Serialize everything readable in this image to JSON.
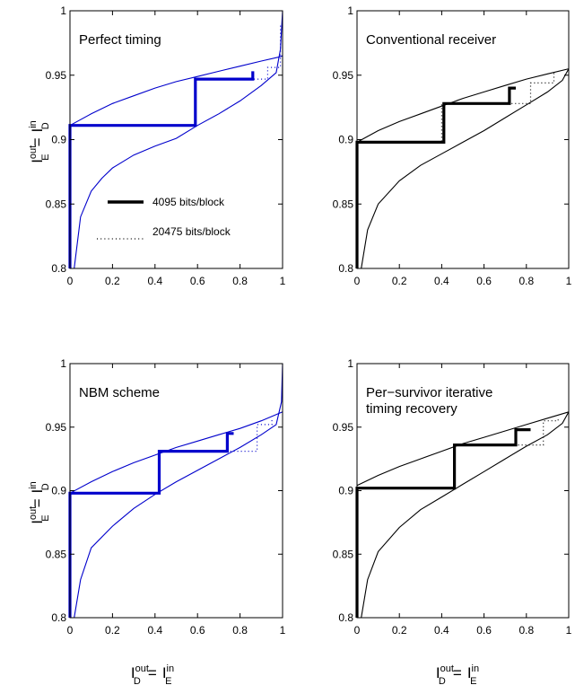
{
  "axis_labels": {
    "y": {
      "main": "I",
      "sup": "out",
      "sub": "E",
      "eq": "=",
      "main2": "I",
      "sup2": "in",
      "sub2": "D"
    },
    "x": {
      "main": "I",
      "sup": "out",
      "sub": "D",
      "eq": "=",
      "main2": "I",
      "sup2": "in",
      "sub2": "E"
    }
  },
  "legend": {
    "entries": [
      {
        "label": "4095 bits/block",
        "style": "solid-thick"
      },
      {
        "label": "20475 bits/block",
        "style": "dotted"
      }
    ]
  },
  "chart_data": [
    {
      "type": "line",
      "annotation": [
        "Perfect timing"
      ],
      "color": "#0000cc",
      "xlim": [
        0,
        1
      ],
      "ylim": [
        0.8,
        1
      ],
      "xticks": [
        "0",
        "0.2",
        "0.4",
        "0.6",
        "0.8",
        "1"
      ],
      "yticks": [
        "0.8",
        "0.85",
        "0.9",
        "0.95",
        "1"
      ],
      "curves": {
        "upper": [
          [
            0,
            0.911
          ],
          [
            0.1,
            0.92
          ],
          [
            0.2,
            0.928
          ],
          [
            0.3,
            0.934
          ],
          [
            0.4,
            0.94
          ],
          [
            0.5,
            0.945
          ],
          [
            0.6,
            0.949
          ],
          [
            0.7,
            0.953
          ],
          [
            0.8,
            0.957
          ],
          [
            0.9,
            0.961
          ],
          [
            0.98,
            0.964
          ],
          [
            1,
            0.965
          ]
        ],
        "lower": [
          [
            0.02,
            0.8
          ],
          [
            0.05,
            0.84
          ],
          [
            0.1,
            0.86
          ],
          [
            0.15,
            0.87
          ],
          [
            0.2,
            0.878
          ],
          [
            0.3,
            0.888
          ],
          [
            0.4,
            0.895
          ],
          [
            0.5,
            0.901
          ],
          [
            0.6,
            0.911
          ],
          [
            0.7,
            0.92
          ],
          [
            0.8,
            0.93
          ],
          [
            0.9,
            0.942
          ],
          [
            0.97,
            0.952
          ],
          [
            0.99,
            0.97
          ],
          [
            1,
            1
          ]
        ]
      },
      "trajectories": [
        {
          "name": "4095 bits/block",
          "style": "solid",
          "points": [
            [
              0,
              0.8
            ],
            [
              0,
              0.911
            ],
            [
              0.59,
              0.911
            ],
            [
              0.59,
              0.947
            ],
            [
              0.86,
              0.947
            ],
            [
              0.86,
              0.953
            ]
          ]
        },
        {
          "name": "20475 bits/block",
          "style": "dotted",
          "points": [
            [
              0,
              0.8
            ],
            [
              0,
              0.911
            ],
            [
              0.59,
              0.911
            ],
            [
              0.59,
              0.947
            ],
            [
              0.93,
              0.947
            ],
            [
              0.93,
              0.956
            ],
            [
              0.99,
              0.956
            ],
            [
              0.99,
              0.99
            ]
          ]
        }
      ]
    },
    {
      "type": "line",
      "annotation": [
        "Conventional receiver"
      ],
      "color": "#000000",
      "xlim": [
        0,
        1
      ],
      "ylim": [
        0.8,
        1
      ],
      "xticks": [
        "0",
        "0.2",
        "0.4",
        "0.6",
        "0.8",
        "1"
      ],
      "yticks": [
        "0.8",
        "0.85",
        "0.9",
        "0.95",
        "1"
      ],
      "curves": {
        "upper": [
          [
            0,
            0.898
          ],
          [
            0.1,
            0.907
          ],
          [
            0.2,
            0.914
          ],
          [
            0.3,
            0.92
          ],
          [
            0.4,
            0.926
          ],
          [
            0.5,
            0.932
          ],
          [
            0.6,
            0.937
          ],
          [
            0.7,
            0.942
          ],
          [
            0.8,
            0.947
          ],
          [
            0.9,
            0.951
          ],
          [
            1,
            0.955
          ]
        ],
        "lower": [
          [
            0.02,
            0.8
          ],
          [
            0.05,
            0.83
          ],
          [
            0.1,
            0.85
          ],
          [
            0.2,
            0.868
          ],
          [
            0.3,
            0.88
          ],
          [
            0.4,
            0.889
          ],
          [
            0.5,
            0.898
          ],
          [
            0.6,
            0.907
          ],
          [
            0.7,
            0.917
          ],
          [
            0.8,
            0.927
          ],
          [
            0.9,
            0.937
          ],
          [
            0.97,
            0.946
          ],
          [
            1,
            0.955
          ]
        ]
      },
      "trajectories": [
        {
          "name": "4095 bits/block",
          "style": "solid",
          "points": [
            [
              0,
              0.8
            ],
            [
              0,
              0.898
            ],
            [
              0.41,
              0.898
            ],
            [
              0.41,
              0.928
            ],
            [
              0.72,
              0.928
            ],
            [
              0.72,
              0.94
            ],
            [
              0.75,
              0.94
            ]
          ]
        },
        {
          "name": "20475 bits/block",
          "style": "dotted",
          "points": [
            [
              0,
              0.8
            ],
            [
              0,
              0.898
            ],
            [
              0.4,
              0.898
            ],
            [
              0.4,
              0.928
            ],
            [
              0.82,
              0.928
            ],
            [
              0.82,
              0.944
            ],
            [
              0.93,
              0.944
            ],
            [
              0.93,
              0.952
            ]
          ]
        }
      ]
    },
    {
      "type": "line",
      "annotation": [
        "NBM scheme"
      ],
      "color": "#0000cc",
      "xlim": [
        0,
        1
      ],
      "ylim": [
        0.8,
        1
      ],
      "xticks": [
        "0",
        "0.2",
        "0.4",
        "0.6",
        "0.8",
        "1"
      ],
      "yticks": [
        "0.8",
        "0.85",
        "0.9",
        "0.95",
        "1"
      ],
      "curves": {
        "upper": [
          [
            0,
            0.898
          ],
          [
            0.1,
            0.907
          ],
          [
            0.2,
            0.915
          ],
          [
            0.3,
            0.922
          ],
          [
            0.4,
            0.928
          ],
          [
            0.5,
            0.934
          ],
          [
            0.6,
            0.939
          ],
          [
            0.7,
            0.944
          ],
          [
            0.8,
            0.949
          ],
          [
            0.9,
            0.955
          ],
          [
            1,
            0.962
          ]
        ],
        "lower": [
          [
            0.02,
            0.8
          ],
          [
            0.05,
            0.83
          ],
          [
            0.1,
            0.855
          ],
          [
            0.2,
            0.872
          ],
          [
            0.3,
            0.886
          ],
          [
            0.4,
            0.897
          ],
          [
            0.5,
            0.907
          ],
          [
            0.6,
            0.916
          ],
          [
            0.7,
            0.925
          ],
          [
            0.8,
            0.934
          ],
          [
            0.9,
            0.944
          ],
          [
            0.97,
            0.952
          ],
          [
            0.995,
            0.97
          ],
          [
            1,
            1
          ]
        ]
      },
      "trajectories": [
        {
          "name": "4095 bits/block",
          "style": "solid",
          "points": [
            [
              0,
              0.8
            ],
            [
              0,
              0.898
            ],
            [
              0.42,
              0.898
            ],
            [
              0.42,
              0.931
            ],
            [
              0.74,
              0.931
            ],
            [
              0.74,
              0.945
            ],
            [
              0.77,
              0.945
            ]
          ]
        },
        {
          "name": "20475 bits/block",
          "style": "dotted",
          "points": [
            [
              0,
              0.8
            ],
            [
              0,
              0.898
            ],
            [
              0.42,
              0.898
            ],
            [
              0.42,
              0.931
            ],
            [
              0.88,
              0.931
            ],
            [
              0.88,
              0.952
            ],
            [
              0.95,
              0.952
            ],
            [
              0.95,
              0.957
            ]
          ]
        }
      ]
    },
    {
      "type": "line",
      "annotation": [
        "Per−survivor iterative",
        "timing recovery"
      ],
      "color": "#000000",
      "xlim": [
        0,
        1
      ],
      "ylim": [
        0.8,
        1
      ],
      "xticks": [
        "0",
        "0.2",
        "0.4",
        "0.6",
        "0.8",
        "1"
      ],
      "yticks": [
        "0.8",
        "0.85",
        "0.9",
        "0.95",
        "1"
      ],
      "curves": {
        "upper": [
          [
            0,
            0.904
          ],
          [
            0.1,
            0.912
          ],
          [
            0.2,
            0.919
          ],
          [
            0.3,
            0.925
          ],
          [
            0.4,
            0.931
          ],
          [
            0.5,
            0.937
          ],
          [
            0.6,
            0.942
          ],
          [
            0.7,
            0.947
          ],
          [
            0.8,
            0.952
          ],
          [
            0.9,
            0.957
          ],
          [
            1,
            0.962
          ]
        ],
        "lower": [
          [
            0.02,
            0.8
          ],
          [
            0.05,
            0.83
          ],
          [
            0.1,
            0.852
          ],
          [
            0.2,
            0.871
          ],
          [
            0.3,
            0.885
          ],
          [
            0.4,
            0.895
          ],
          [
            0.5,
            0.905
          ],
          [
            0.6,
            0.915
          ],
          [
            0.7,
            0.925
          ],
          [
            0.8,
            0.935
          ],
          [
            0.9,
            0.944
          ],
          [
            0.97,
            0.953
          ],
          [
            1,
            0.962
          ]
        ]
      },
      "trajectories": [
        {
          "name": "4095 bits/block",
          "style": "solid",
          "points": [
            [
              0,
              0.8
            ],
            [
              0,
              0.902
            ],
            [
              0.46,
              0.902
            ],
            [
              0.46,
              0.936
            ],
            [
              0.75,
              0.936
            ],
            [
              0.75,
              0.948
            ],
            [
              0.82,
              0.948
            ]
          ]
        },
        {
          "name": "20475 bits/block",
          "style": "dotted",
          "points": [
            [
              0,
              0.8
            ],
            [
              0,
              0.902
            ],
            [
              0.46,
              0.902
            ],
            [
              0.46,
              0.936
            ],
            [
              0.88,
              0.936
            ],
            [
              0.88,
              0.955
            ],
            [
              0.95,
              0.955
            ],
            [
              0.95,
              0.958
            ]
          ]
        }
      ]
    }
  ]
}
